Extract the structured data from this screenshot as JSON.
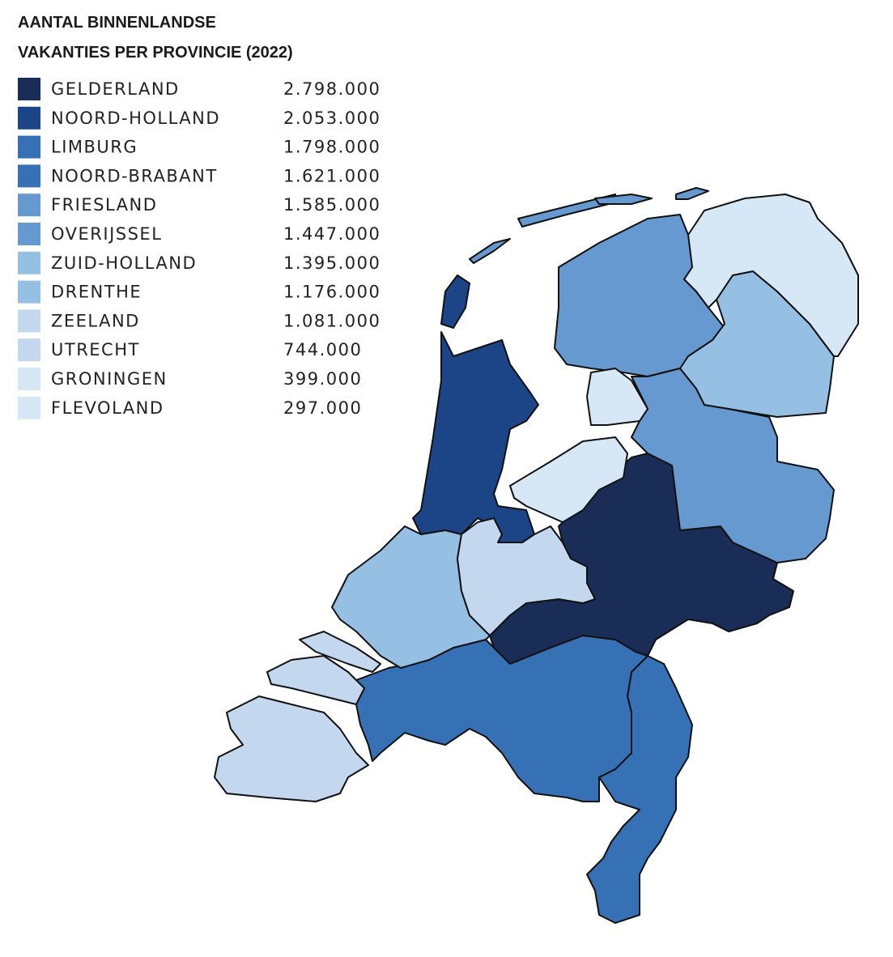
{
  "chart_data": {
    "type": "choropleth",
    "title": [
      "AANTAL BINNENLANDSE",
      "VAKANTIES PER PROVINCIE (2022)"
    ],
    "categories": [
      "GELDERLAND",
      "NOORD-HOLLAND",
      "LIMBURG",
      "NOORD-BRABANT",
      "FRIESLAND",
      "OVERIJSSEL",
      "ZUID-HOLLAND",
      "DRENTHE",
      "ZEELAND",
      "UTRECHT",
      "GRONINGEN",
      "FLEVOLAND"
    ],
    "values": [
      2798000,
      2053000,
      1798000,
      1621000,
      1585000,
      1447000,
      1395000,
      1176000,
      1081000,
      744000,
      399000,
      297000
    ],
    "value_labels": [
      "2.798.000",
      "2.053.000",
      "1.798.000",
      "1.621.000",
      "1.585.000",
      "1.447.000",
      "1.395.000",
      "1.176.000",
      "1.081.000",
      "744.000",
      "399.000",
      "297.000"
    ],
    "colors": [
      "#1a2d57",
      "#1c4588",
      "#3671b5",
      "#3671b5",
      "#6699cf",
      "#6699cf",
      "#96bfe4",
      "#96bfe4",
      "#c3d7ee",
      "#c3d7ee",
      "#d6e7f6",
      "#d6e7f6"
    ],
    "legend": "top-left"
  }
}
